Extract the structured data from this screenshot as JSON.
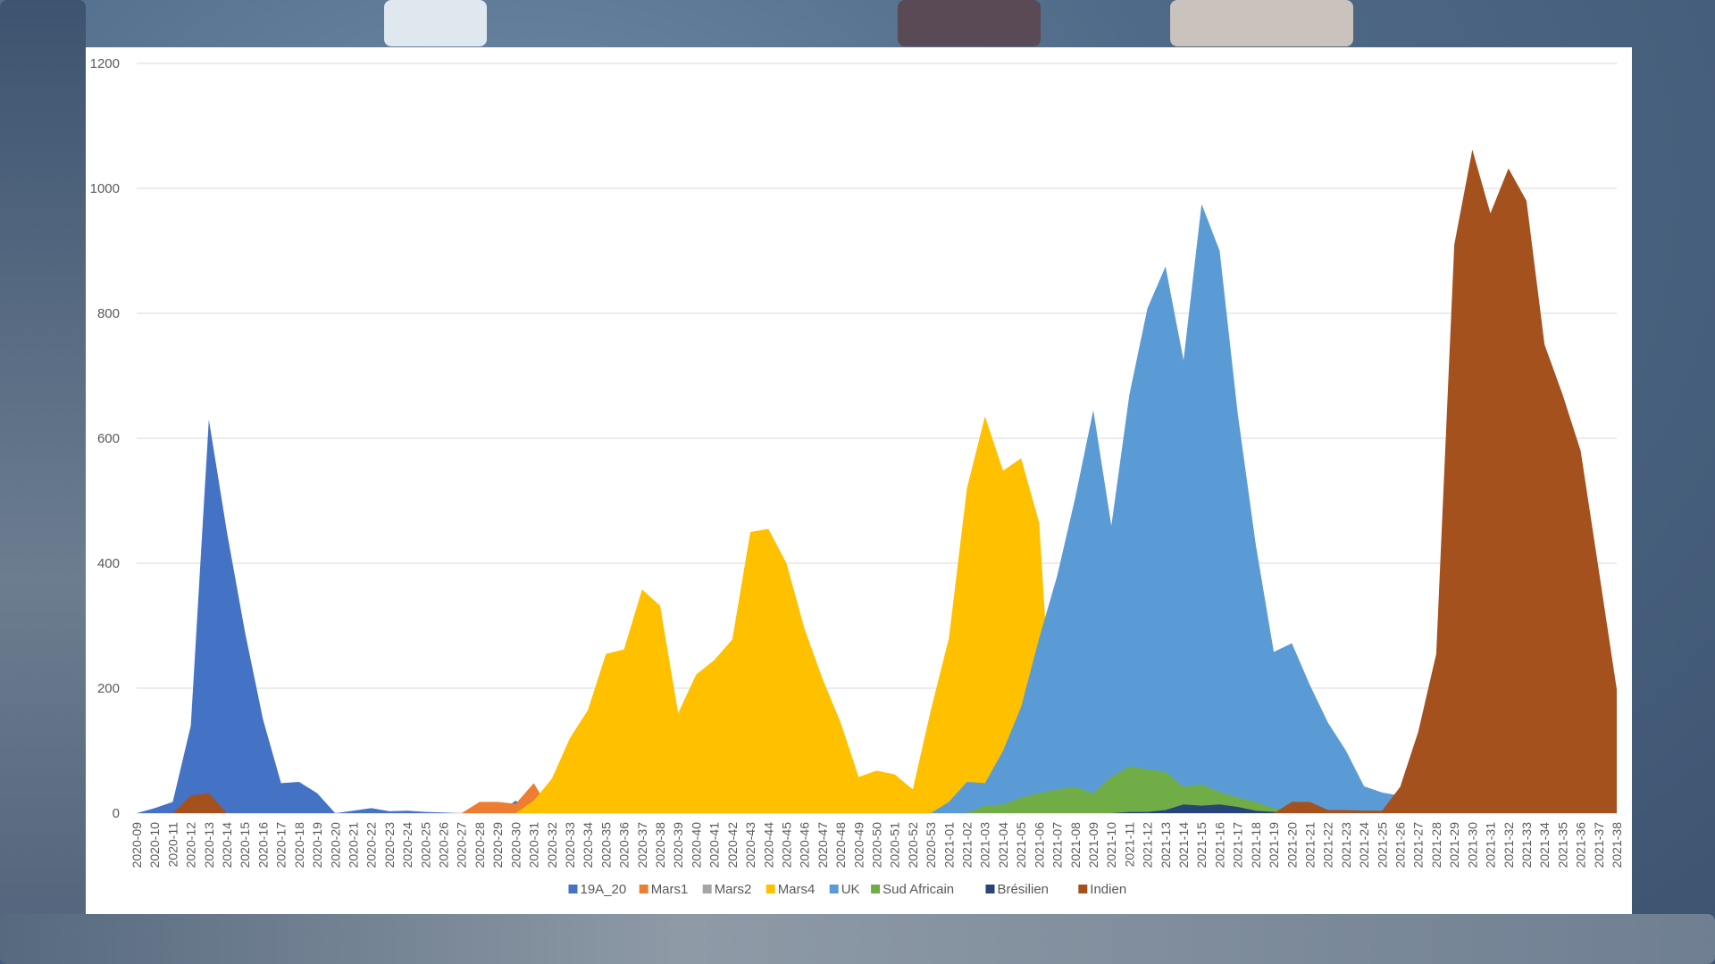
{
  "background": {
    "tone": "blurred office photo",
    "colors": [
      "#6f8aa6",
      "#4f6a88",
      "#3d5470"
    ]
  },
  "chart_data": {
    "type": "area",
    "title": "",
    "xlabel": "",
    "ylabel": "",
    "ylim": [
      0,
      1200
    ],
    "yticks": [
      0,
      200,
      400,
      600,
      800,
      1000,
      1200
    ],
    "grid": true,
    "legend_position": "bottom",
    "x": [
      "2020-09",
      "2020-10",
      "2020-11",
      "2020-12",
      "2020-13",
      "2020-14",
      "2020-15",
      "2020-16",
      "2020-17",
      "2020-18",
      "2020-19",
      "2020-20",
      "2020-21",
      "2020-22",
      "2020-23",
      "2020-24",
      "2020-25",
      "2020-26",
      "2020-27",
      "2020-28",
      "2020-29",
      "2020-30",
      "2020-31",
      "2020-32",
      "2020-33",
      "2020-34",
      "2020-35",
      "2020-36",
      "2020-37",
      "2020-38",
      "2020-39",
      "2020-40",
      "2020-41",
      "2020-42",
      "2020-43",
      "2020-44",
      "2020-45",
      "2020-46",
      "2020-47",
      "2020-48",
      "2020-49",
      "2020-50",
      "2020-51",
      "2020-52",
      "2020-53",
      "2021-01",
      "2021-02",
      "2021-03",
      "2021-04",
      "2021-05",
      "2021-06",
      "2021-07",
      "2021-08",
      "2021-09",
      "2021-10",
      "2021-11",
      "2021-12",
      "2021-13",
      "2021-14",
      "2021-15",
      "2021-16",
      "2021-17",
      "2021-18",
      "2021-19",
      "2021-20",
      "2021-21",
      "2021-22",
      "2021-23",
      "2021-24",
      "2021-25",
      "2021-26",
      "2021-27",
      "2021-28",
      "2021-29",
      "2021-30",
      "2021-31",
      "2021-32",
      "2021-33",
      "2021-34",
      "2021-35",
      "2021-36",
      "2021-37",
      "2021-38"
    ],
    "series": [
      {
        "name": "19A_20",
        "color": "#4472c4",
        "values": [
          0,
          8,
          18,
          140,
          630,
          450,
          290,
          150,
          48,
          50,
          32,
          0,
          4,
          8,
          3,
          4,
          2,
          1,
          0,
          0,
          0,
          20,
          0,
          0,
          0,
          0,
          0,
          0,
          0,
          0,
          0,
          0,
          0,
          0,
          0,
          0,
          0,
          0,
          0,
          0,
          0,
          0,
          0,
          0,
          0,
          0,
          0,
          0,
          0,
          0,
          0,
          0,
          0,
          0,
          0,
          0,
          0,
          0,
          0,
          0,
          0,
          0,
          0,
          0,
          0,
          0,
          0,
          0,
          0,
          0,
          0,
          0,
          0,
          0,
          0,
          0,
          0,
          0,
          0,
          0,
          0,
          0,
          0
        ]
      },
      {
        "name": "Mars1",
        "color": "#ed7d31",
        "values": [
          0,
          0,
          0,
          0,
          0,
          0,
          0,
          0,
          0,
          0,
          0,
          0,
          0,
          0,
          0,
          0,
          0,
          0,
          0,
          18,
          18,
          15,
          48,
          0,
          0,
          0,
          0,
          0,
          0,
          0,
          0,
          0,
          0,
          0,
          0,
          0,
          0,
          0,
          0,
          0,
          0,
          0,
          0,
          0,
          0,
          0,
          0,
          0,
          0,
          0,
          0,
          0,
          0,
          0,
          0,
          0,
          0,
          0,
          0,
          0,
          0,
          0,
          0,
          0,
          0,
          0,
          0,
          0,
          0,
          0,
          0,
          0,
          0,
          0,
          0,
          0,
          0,
          0,
          0,
          0,
          0,
          0,
          0
        ]
      },
      {
        "name": "Mars2",
        "color": "#a5a5a5",
        "values": [
          0,
          0,
          0,
          0,
          0,
          0,
          0,
          0,
          0,
          0,
          0,
          0,
          0,
          0,
          0,
          0,
          0,
          0,
          0,
          0,
          0,
          0,
          0,
          0,
          0,
          0,
          0,
          0,
          0,
          0,
          0,
          0,
          0,
          0,
          0,
          0,
          0,
          0,
          0,
          0,
          0,
          0,
          0,
          0,
          0,
          0,
          0,
          0,
          0,
          0,
          0,
          0,
          0,
          0,
          0,
          0,
          0,
          0,
          0,
          0,
          0,
          0,
          0,
          0,
          0,
          0,
          0,
          0,
          0,
          0,
          0,
          0,
          0,
          0,
          0,
          0,
          0,
          0,
          0,
          0,
          0,
          0,
          0
        ]
      },
      {
        "name": "Mars4",
        "color": "#ffc000",
        "values": [
          0,
          0,
          0,
          0,
          0,
          0,
          0,
          0,
          0,
          0,
          0,
          0,
          0,
          0,
          0,
          0,
          0,
          0,
          0,
          0,
          0,
          0,
          20,
          55,
          120,
          165,
          255,
          262,
          358,
          332,
          160,
          222,
          245,
          278,
          450,
          455,
          400,
          295,
          215,
          145,
          58,
          68,
          62,
          38,
          165,
          280,
          520,
          635,
          548,
          568,
          465,
          0,
          0,
          0,
          0,
          0,
          0,
          0,
          0,
          0,
          0,
          0,
          0,
          0,
          0,
          0,
          0,
          0,
          0,
          0,
          0,
          0,
          0,
          0,
          0,
          0,
          0,
          0,
          0,
          0,
          0,
          0,
          0
        ]
      },
      {
        "name": "UK",
        "color": "#5b9bd5",
        "values": [
          0,
          0,
          0,
          0,
          0,
          0,
          0,
          0,
          0,
          0,
          0,
          0,
          0,
          0,
          0,
          0,
          0,
          0,
          0,
          0,
          0,
          0,
          0,
          0,
          0,
          0,
          0,
          0,
          0,
          0,
          0,
          0,
          0,
          0,
          0,
          0,
          0,
          0,
          0,
          0,
          0,
          0,
          0,
          0,
          0,
          18,
          50,
          48,
          100,
          170,
          280,
          380,
          505,
          645,
          460,
          670,
          808,
          875,
          725,
          975,
          900,
          640,
          430,
          258,
          272,
          205,
          145,
          100,
          43,
          33,
          28,
          0,
          0,
          0,
          0,
          0,
          0,
          0,
          0,
          0,
          0,
          0,
          0
        ]
      },
      {
        "name": "Sud Africain",
        "color": "#70ad47",
        "values": [
          0,
          0,
          0,
          0,
          0,
          0,
          0,
          0,
          0,
          0,
          0,
          0,
          0,
          0,
          0,
          0,
          0,
          0,
          0,
          0,
          0,
          0,
          0,
          0,
          0,
          0,
          0,
          0,
          0,
          0,
          0,
          0,
          0,
          0,
          0,
          0,
          0,
          0,
          0,
          0,
          0,
          0,
          0,
          0,
          0,
          0,
          0,
          12,
          14,
          25,
          32,
          38,
          42,
          32,
          58,
          75,
          70,
          66,
          42,
          46,
          34,
          25,
          18,
          8,
          0,
          0,
          0,
          0,
          0,
          0,
          0,
          0,
          0,
          0,
          0,
          0,
          0,
          0,
          0,
          0,
          0,
          0,
          0
        ]
      },
      {
        "name": "Brésilien",
        "color": "#264478",
        "values": [
          0,
          0,
          0,
          0,
          0,
          0,
          0,
          0,
          0,
          0,
          0,
          0,
          0,
          0,
          0,
          0,
          0,
          0,
          0,
          0,
          0,
          0,
          0,
          0,
          0,
          0,
          0,
          0,
          0,
          0,
          0,
          0,
          0,
          0,
          0,
          0,
          0,
          0,
          0,
          0,
          0,
          0,
          0,
          0,
          0,
          0,
          0,
          0,
          0,
          0,
          0,
          0,
          0,
          0,
          0,
          2,
          2,
          5,
          14,
          12,
          14,
          10,
          4,
          2,
          0,
          0,
          0,
          0,
          0,
          0,
          0,
          0,
          0,
          0,
          0,
          0,
          0,
          0,
          0,
          0,
          0,
          0,
          0
        ]
      },
      {
        "name": "Indien",
        "color": "#a5511d",
        "values": [
          0,
          0,
          0,
          28,
          32,
          0,
          0,
          0,
          0,
          0,
          0,
          0,
          0,
          0,
          0,
          0,
          0,
          0,
          0,
          0,
          0,
          0,
          0,
          0,
          0,
          0,
          0,
          0,
          0,
          0,
          0,
          0,
          0,
          0,
          0,
          0,
          0,
          0,
          0,
          0,
          0,
          0,
          0,
          0,
          0,
          0,
          0,
          0,
          0,
          0,
          0,
          0,
          0,
          0,
          0,
          0,
          0,
          0,
          0,
          0,
          0,
          0,
          0,
          0,
          18,
          18,
          5,
          5,
          4,
          4,
          42,
          130,
          255,
          910,
          1062,
          960,
          1032,
          980,
          750,
          670,
          580,
          390,
          198
        ]
      }
    ]
  }
}
